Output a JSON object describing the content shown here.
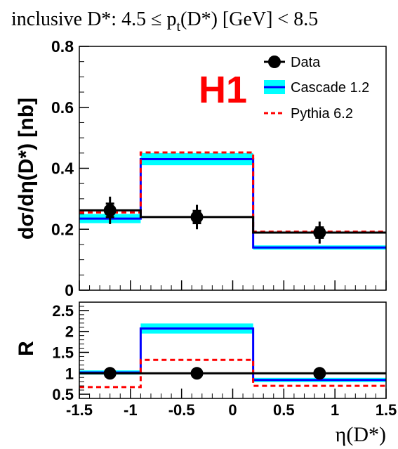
{
  "chart_data": {
    "type": "line",
    "title": "inclusive D*: 4.5 ≤ pt(D*) [GeV] < 8.5",
    "title_parts": {
      "before": "inclusive D*: 4.5 ≤ p",
      "subscript": "t",
      "after": "(D*) [GeV] < 8.5"
    },
    "experiment_label": "H1",
    "xlabel": "η(D*)",
    "xlim": [
      -1.5,
      1.5
    ],
    "bin_edges": [
      -1.5,
      -0.9,
      0.2,
      1.5
    ],
    "x_ticks": [
      "-1.5",
      "-1",
      "-0.5",
      "0",
      "0.5",
      "1",
      "1.5"
    ],
    "x_tick_values": [
      -1.5,
      -1,
      -0.5,
      0,
      0.5,
      1,
      1.5
    ],
    "legend": {
      "placement": "top-right",
      "entries": [
        "Data",
        "Cascade 1.2",
        "Pythia 6.2"
      ]
    },
    "colors": {
      "data": "#000000",
      "cascade_line": "#0000ff",
      "cascade_band": "#00ffff",
      "pythia": "#ff0000",
      "experiment_label": "#ff0000"
    },
    "panels": [
      {
        "name": "cross-section",
        "ylabel": "dσ/dη(D*) [nb]",
        "ylim": [
          0,
          0.8
        ],
        "y_ticks": [
          "0",
          "0.2",
          "0.4",
          "0.6",
          "0.8"
        ],
        "y_tick_values": [
          0,
          0.2,
          0.4,
          0.6,
          0.8
        ],
        "series": [
          {
            "name": "Data",
            "style": "points",
            "x": [
              -1.2,
              -0.35,
              0.85
            ],
            "values": [
              0.262,
              0.24,
              0.189
            ],
            "stat_err": [
              0.022,
              0.02,
              0.017
            ],
            "total_err": [
              0.045,
              0.04,
              0.036
            ]
          },
          {
            "name": "Cascade 1.2",
            "style": "histogram-band",
            "values": [
              0.235,
              0.43,
              0.14
            ],
            "band_low": [
              0.22,
              0.41,
              0.133
            ],
            "band_high": [
              0.25,
              0.45,
              0.147
            ]
          },
          {
            "name": "Pythia 6.2",
            "style": "histogram-dashed",
            "values": [
              0.255,
              0.452,
              0.192
            ]
          }
        ]
      },
      {
        "name": "ratio",
        "ylabel": "R",
        "ylim": [
          0.4,
          2.7
        ],
        "y_ticks": [
          "0.5",
          "1",
          "1.5",
          "2",
          "2.5"
        ],
        "y_tick_values": [
          0.5,
          1,
          1.5,
          2,
          2.5
        ],
        "series": [
          {
            "name": "Data",
            "style": "points",
            "x": [
              -1.2,
              -0.35,
              0.85
            ],
            "values": [
              1.0,
              1.0,
              1.0
            ],
            "stat_err": [
              0.04,
              0.04,
              0.04
            ],
            "total_err": [
              0.13,
              0.1,
              0.14
            ]
          },
          {
            "name": "Cascade 1.2",
            "style": "histogram-band",
            "values": [
              1.02,
              2.07,
              0.84
            ],
            "band_low": [
              0.97,
              1.95,
              0.79
            ],
            "band_high": [
              1.07,
              2.19,
              0.89
            ]
          },
          {
            "name": "Pythia 6.2",
            "style": "histogram-dashed",
            "values": [
              0.67,
              1.32,
              0.7
            ]
          }
        ]
      }
    ]
  }
}
